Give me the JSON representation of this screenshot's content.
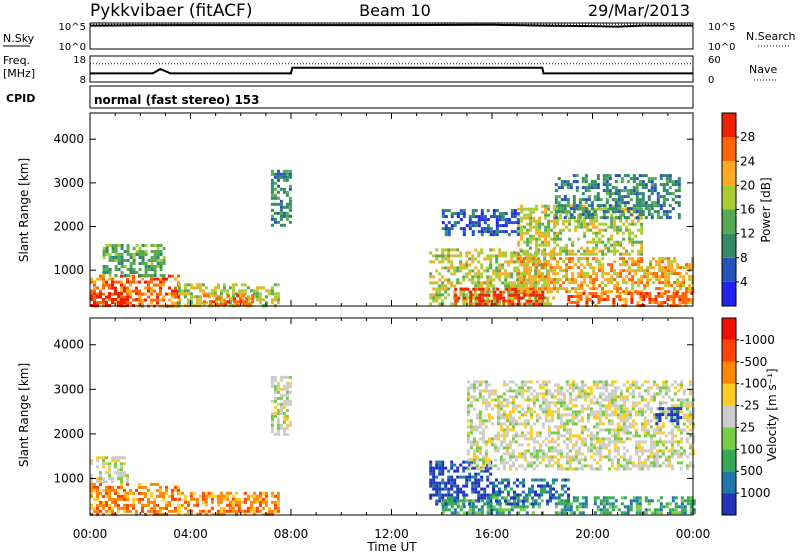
{
  "header": {
    "station": "Pykkvibaer (fitACF)",
    "beam": "Beam 10",
    "date": "29/Mar/2013"
  },
  "chart_data": [
    {
      "type": "line",
      "panel": "noise",
      "left_label": "N.Sky",
      "right_label": "N.Search",
      "left_ticks": [
        "10^5",
        "10^0"
      ],
      "right_ticks": [
        "10^5",
        "10^0"
      ],
      "series": [
        {
          "name": "N.Sky",
          "style": "solid",
          "x": [
            0,
            0.25,
            4,
            8,
            12,
            16,
            18,
            20,
            21,
            22,
            24
          ],
          "y": [
            0.9,
            0.9,
            0.92,
            0.92,
            0.92,
            0.93,
            0.9,
            0.88,
            0.86,
            0.9,
            0.9
          ]
        },
        {
          "name": "N.Search",
          "style": "dotted",
          "x": [
            0,
            24
          ],
          "y": [
            0.95,
            0.95
          ]
        }
      ]
    },
    {
      "type": "line",
      "panel": "frequency-nave",
      "left_label": "Freq.",
      "left_unit": "[MHz]",
      "right_label": "Nave",
      "left_ticks": [
        "18",
        "8"
      ],
      "right_ticks": [
        "60",
        "0"
      ],
      "series": [
        {
          "name": "Freq.",
          "style": "solid",
          "x": [
            0,
            2.5,
            2.8,
            3.2,
            8,
            8.05,
            18,
            18.05,
            24
          ],
          "y": [
            0.33,
            0.33,
            0.5,
            0.33,
            0.33,
            0.55,
            0.55,
            0.33,
            0.33
          ]
        },
        {
          "name": "Nave",
          "style": "dotted",
          "x": [
            0,
            24
          ],
          "y": [
            0.7,
            0.7
          ]
        }
      ]
    },
    {
      "type": "text",
      "panel": "cpid",
      "label": "CPID",
      "value": "normal (fast stereo) 153"
    },
    {
      "type": "heatmap",
      "panel": "power",
      "ylabel": "Slant Range [km]",
      "yticks": [
        1000,
        2000,
        3000,
        4000
      ],
      "ylim": [
        180,
        4600
      ],
      "xlim": [
        0,
        24
      ],
      "colorbar": {
        "label": "Power [dB]",
        "ticks": [
          "4",
          "8",
          "12",
          "16",
          "20",
          "24",
          "28"
        ],
        "colors": [
          "#2222ee",
          "#2255bb",
          "#338866",
          "#55aa55",
          "#aacc33",
          "#ffaa22",
          "#ff6600",
          "#ee2200"
        ]
      },
      "regions": [
        {
          "x": [
            0,
            3.5
          ],
          "y": [
            200,
            900
          ],
          "level": 6
        },
        {
          "x": [
            0,
            1.8
          ],
          "y": [
            200,
            500
          ],
          "level": 7
        },
        {
          "x": [
            0.5,
            3
          ],
          "y": [
            900,
            1600
          ],
          "level": 3
        },
        {
          "x": [
            3.5,
            7.5
          ],
          "y": [
            200,
            700
          ],
          "level": 4
        },
        {
          "x": [
            4.5,
            6.5
          ],
          "y": [
            200,
            450
          ],
          "level": 6
        },
        {
          "x": [
            7.2,
            8
          ],
          "y": [
            2000,
            3300
          ],
          "level": 2
        },
        {
          "x": [
            13.5,
            18.5
          ],
          "y": [
            200,
            1500
          ],
          "level": 4
        },
        {
          "x": [
            14.5,
            18
          ],
          "y": [
            200,
            600
          ],
          "level": 7
        },
        {
          "x": [
            17,
            24
          ],
          "y": [
            500,
            1300
          ],
          "level": 5
        },
        {
          "x": [
            19,
            24
          ],
          "y": [
            200,
            500
          ],
          "level": 6
        },
        {
          "x": [
            17,
            22
          ],
          "y": [
            1400,
            2500
          ],
          "level": 4
        },
        {
          "x": [
            18.5,
            23.5
          ],
          "y": [
            2200,
            3200
          ],
          "level": 2
        },
        {
          "x": [
            14,
            17
          ],
          "y": [
            1800,
            2400
          ],
          "level": 1
        }
      ]
    },
    {
      "type": "heatmap",
      "panel": "velocity",
      "ylabel": "Slant Range [km]",
      "yticks": [
        1000,
        2000,
        3000,
        4000
      ],
      "ylim": [
        180,
        4600
      ],
      "xlim": [
        0,
        24
      ],
      "xticks": [
        "00:00",
        "04:00",
        "08:00",
        "12:00",
        "16:00",
        "20:00",
        "00:00"
      ],
      "xlabel": "Time UT",
      "colorbar": {
        "label": "Velocity [m s⁻¹]",
        "ticks": [
          "1000",
          "500",
          "100",
          "25",
          "-25",
          "-100",
          "-500",
          "-1000"
        ],
        "colors": [
          "#2233bb",
          "#2277aa",
          "#33aa55",
          "#77cc44",
          "#cccccc",
          "#ffcc22",
          "#ff8800",
          "#ff4400",
          "#ee1100"
        ]
      },
      "regions": [
        {
          "x": [
            0,
            3.5
          ],
          "y": [
            200,
            900
          ],
          "level": 6
        },
        {
          "x": [
            3.5,
            7.5
          ],
          "y": [
            200,
            700
          ],
          "level": 6
        },
        {
          "x": [
            0,
            1.5
          ],
          "y": [
            900,
            1500
          ],
          "level": 4
        },
        {
          "x": [
            7.2,
            8
          ],
          "y": [
            2000,
            3300
          ],
          "level": 4
        },
        {
          "x": [
            13.5,
            16
          ],
          "y": [
            400,
            1400
          ],
          "level": 0
        },
        {
          "x": [
            14,
            18
          ],
          "y": [
            200,
            600
          ],
          "level": 2
        },
        {
          "x": [
            16,
            19
          ],
          "y": [
            400,
            1000
          ],
          "level": 1
        },
        {
          "x": [
            18.5,
            24
          ],
          "y": [
            200,
            600
          ],
          "level": 2
        },
        {
          "x": [
            15,
            24
          ],
          "y": [
            1200,
            3200
          ],
          "level": 4
        },
        {
          "x": [
            22.5,
            23.5
          ],
          "y": [
            2200,
            2600
          ],
          "level": 0
        }
      ]
    }
  ]
}
